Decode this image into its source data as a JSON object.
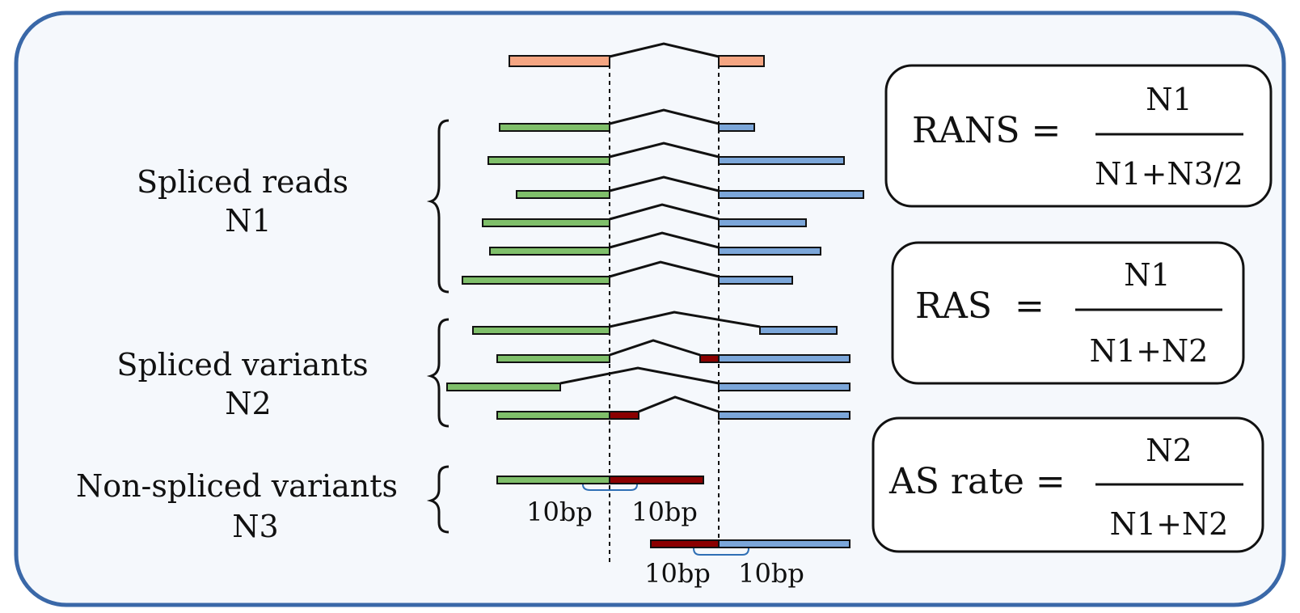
{
  "groups": [
    {
      "name": "Spliced reads",
      "count": "N1"
    },
    {
      "name": "Spliced variants",
      "count": "N2"
    },
    {
      "name": "Non-spliced variants",
      "count": "N3"
    }
  ],
  "bp_labels": [
    "10bp",
    "10bp",
    "10bp",
    "10bp"
  ],
  "formulas": [
    {
      "lhs": "RANS =",
      "numerator": "N1",
      "denominator": "N1+N3/2"
    },
    {
      "lhs": "RAS  =",
      "numerator": "N1",
      "denominator": "N1+N2"
    },
    {
      "lhs": "AS rate =",
      "numerator": "N2",
      "denominator": "N1+N2"
    }
  ],
  "colors": {
    "reference_exon": "#F4A582",
    "upstream_exon": "#7FBF6A",
    "downstream_exon": "#7BA6D9",
    "variant_segment": "#8B0000",
    "bracket": "#2F6FB5",
    "frame": "#3A68A8",
    "panel_bg": "#F5F8FC"
  }
}
